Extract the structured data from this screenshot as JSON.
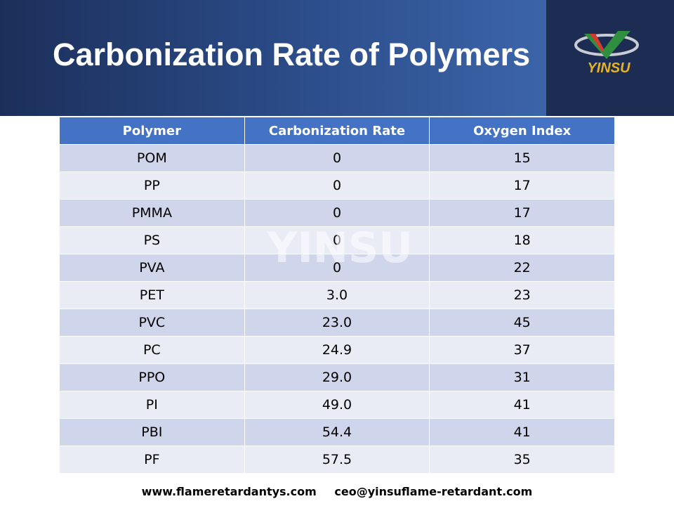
{
  "header": {
    "title": "Carbonization Rate of Polymers",
    "logo": "YINSU"
  },
  "table": {
    "columns": [
      "Polymer",
      "Carbonization Rate",
      "Oxygen Index"
    ],
    "rows": [
      [
        "POM",
        "0",
        "15"
      ],
      [
        "PP",
        "0",
        "17"
      ],
      [
        "PMMA",
        "0",
        "17"
      ],
      [
        "PS",
        "0",
        "18"
      ],
      [
        "PVA",
        "0",
        "22"
      ],
      [
        "PET",
        "3.0",
        "23"
      ],
      [
        "PVC",
        "23.0",
        "45"
      ],
      [
        "PC",
        "24.9",
        "37"
      ],
      [
        "PPO",
        "29.0",
        "31"
      ],
      [
        "PI",
        "49.0",
        "41"
      ],
      [
        "PBI",
        "54.4",
        "41"
      ],
      [
        "PF",
        "57.5",
        "35"
      ]
    ]
  },
  "watermark": "YINSU",
  "footer": {
    "website": "www.flameretardantys.com",
    "email": "ceo@yinsuflame-retardant.com"
  }
}
